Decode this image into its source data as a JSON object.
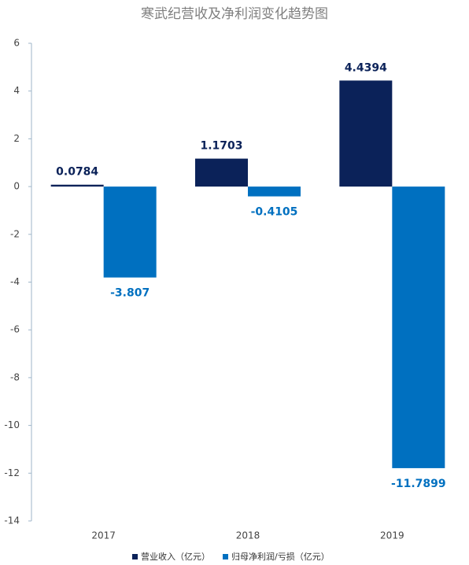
{
  "chart_data": {
    "type": "bar",
    "title": "寒武纪营收及净利润变化趋势图",
    "categories": [
      "2017",
      "2018",
      "2019"
    ],
    "series": [
      {
        "name": "营业收入（亿元）",
        "color": "#0b2259",
        "values": [
          0.0784,
          1.1703,
          4.4394
        ]
      },
      {
        "name": "归母净利润/亏损（亿元）",
        "color": "#0070c0",
        "values": [
          -3.807,
          -0.4105,
          -11.7899
        ]
      }
    ],
    "ylim": [
      -14,
      6
    ],
    "yticks": [
      -14,
      -12,
      -10,
      -8,
      -6,
      -4,
      -2,
      0,
      2,
      4,
      6
    ],
    "grid": false,
    "legend": "bottom"
  }
}
